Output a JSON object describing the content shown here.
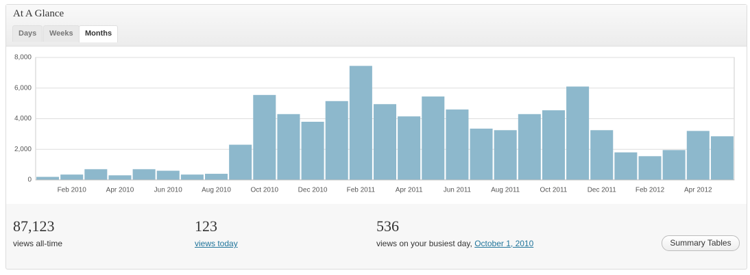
{
  "header": {
    "title": "At A Glance"
  },
  "tabs": [
    "Days",
    "Weeks",
    "Months"
  ],
  "chart_data": {
    "type": "bar",
    "categories": [
      null,
      "Feb 2010",
      null,
      "Apr 2010",
      null,
      "Jun 2010",
      null,
      "Aug 2010",
      null,
      "Oct 2010",
      null,
      "Dec 2010",
      null,
      "Feb 2011",
      null,
      "Apr 2011",
      null,
      "Jun 2011",
      null,
      "Aug 2011",
      null,
      "Oct 2011",
      null,
      "Dec 2011",
      null,
      "Feb 2012",
      null,
      "Apr 2012",
      null
    ],
    "values": [
      200,
      350,
      700,
      300,
      700,
      600,
      350,
      400,
      2300,
      5550,
      4300,
      3800,
      5150,
      7450,
      4950,
      4150,
      5450,
      4600,
      3350,
      3250,
      4300,
      4550,
      6100,
      3250,
      1800,
      1550,
      1950,
      3200,
      2850
    ],
    "color": "#8db8cc",
    "ylim": [
      0,
      8000
    ],
    "yticks": [
      0,
      {
        "value": 2000,
        "label": "2,000"
      },
      {
        "value": 4000,
        "label": "4,000"
      },
      {
        "value": 6000,
        "label": "6,000"
      },
      {
        "value": 8000,
        "label": "8,000"
      }
    ],
    "grid": true
  },
  "stats": [
    {
      "value": "87,123",
      "label": "views all-time"
    },
    {
      "value": "123",
      "link": "views today"
    },
    {
      "value": "536",
      "label": "views on your busiest day,",
      "link": "October 1, 2010"
    }
  ],
  "button": "Summary Tables"
}
